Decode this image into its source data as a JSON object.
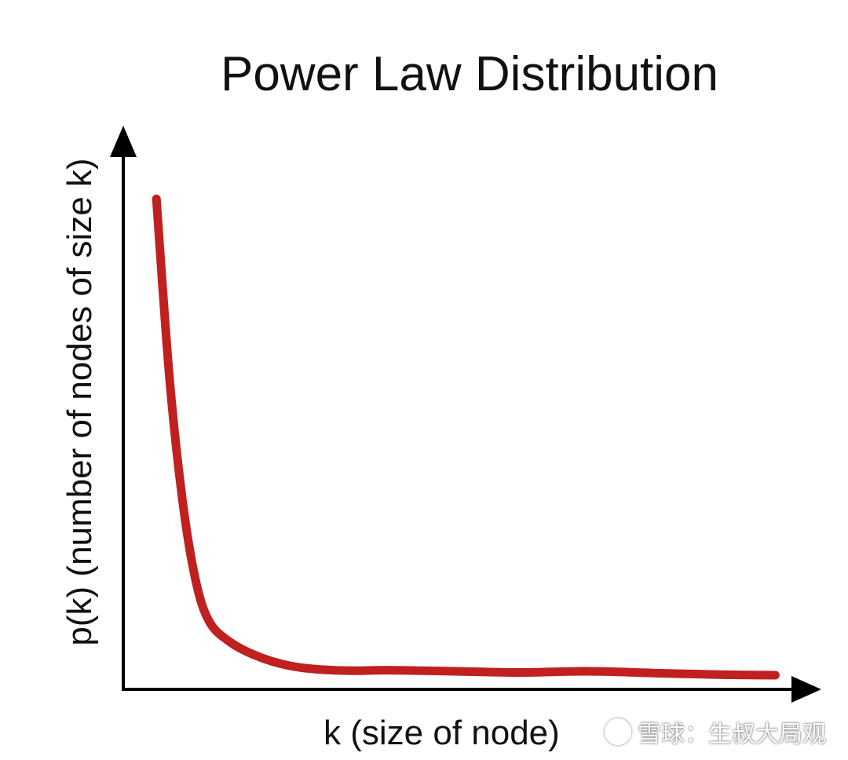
{
  "chart_data": {
    "type": "line",
    "title": "Power Law Distribution",
    "xlabel": "k (size of node)",
    "ylabel": "p(k) (number of nodes of size k)",
    "grid": false,
    "legend": "none",
    "xlim": [
      0,
      1
    ],
    "ylim": [
      0,
      1
    ],
    "ticks": "none",
    "series": [
      {
        "color": "#c0201f",
        "x": [
          0.05,
          0.07,
          0.09,
          0.11,
          0.13,
          0.16,
          0.2,
          0.25,
          0.3,
          0.35,
          0.4,
          0.5,
          0.6,
          0.7,
          0.8,
          0.9,
          0.985
        ],
        "y": [
          0.87,
          0.55,
          0.33,
          0.19,
          0.12,
          0.085,
          0.06,
          0.042,
          0.035,
          0.033,
          0.034,
          0.032,
          0.03,
          0.032,
          0.029,
          0.026,
          0.025
        ]
      }
    ]
  },
  "watermark": {
    "text": "雪球：生叔大局观",
    "logo_icon": "snowball-logo-icon"
  }
}
